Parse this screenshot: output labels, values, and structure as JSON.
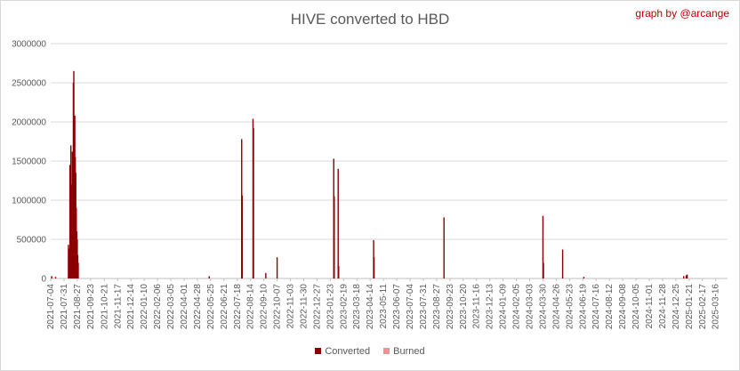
{
  "chart_data": {
    "type": "bar",
    "title": "HIVE converted to HBD",
    "credit": "graph by @arcange",
    "xlabel": "",
    "ylabel": "",
    "ylim": [
      0,
      3000000
    ],
    "yticks": [
      "0",
      "500000",
      "1000000",
      "1500000",
      "2000000",
      "2500000",
      "3000000"
    ],
    "ytick_values": [
      0,
      500000,
      1000000,
      1500000,
      2000000,
      2500000,
      3000000
    ],
    "grid": true,
    "legend_position": "bottom",
    "x_start": "2021-07-04",
    "x_end": "2025-04-09",
    "x_ticks": [
      "2021-07-04",
      "2021-07-31",
      "2021-08-27",
      "2021-09-23",
      "2021-10-21",
      "2021-11-17",
      "2021-12-14",
      "2022-01-10",
      "2022-02-06",
      "2022-03-05",
      "2022-04-01",
      "2022-04-28",
      "2022-05-25",
      "2022-06-21",
      "2022-07-18",
      "2022-08-14",
      "2022-09-10",
      "2022-10-07",
      "2022-11-03",
      "2022-11-30",
      "2022-12-27",
      "2023-01-23",
      "2023-02-19",
      "2023-03-18",
      "2023-04-14",
      "2023-05-11",
      "2023-06-07",
      "2023-07-04",
      "2023-07-31",
      "2023-08-27",
      "2023-09-23",
      "2023-10-20",
      "2023-11-16",
      "2023-12-13",
      "2024-01-09",
      "2024-02-05",
      "2024-03-03",
      "2024-03-30",
      "2024-04-26",
      "2024-05-23",
      "2024-06-19",
      "2024-07-16",
      "2024-08-12",
      "2024-09-08",
      "2024-10-05",
      "2024-11-01",
      "2024-11-28",
      "2024-12-25",
      "2025-01-21",
      "2025-02-17",
      "2025-03-16"
    ],
    "series": [
      {
        "name": "Converted",
        "color": "#8b0000",
        "points": [
          [
            "2021-07-06",
            30000
          ],
          [
            "2021-07-14",
            20000
          ],
          [
            "2021-08-09",
            430000
          ],
          [
            "2021-08-10",
            380000
          ],
          [
            "2021-08-11",
            260000
          ],
          [
            "2021-08-12",
            1450000
          ],
          [
            "2021-08-13",
            1120000
          ],
          [
            "2021-08-14",
            1700000
          ],
          [
            "2021-08-15",
            1200000
          ],
          [
            "2021-08-16",
            900000
          ],
          [
            "2021-08-17",
            1620000
          ],
          [
            "2021-08-18",
            1150000
          ],
          [
            "2021-08-19",
            2500000
          ],
          [
            "2021-08-20",
            2650000
          ],
          [
            "2021-08-21",
            1900000
          ],
          [
            "2021-08-22",
            2080000
          ],
          [
            "2021-08-23",
            1550000
          ],
          [
            "2021-08-24",
            1350000
          ],
          [
            "2021-08-25",
            900000
          ],
          [
            "2021-08-26",
            600000
          ],
          [
            "2021-08-27",
            500000
          ],
          [
            "2021-08-28",
            300000
          ],
          [
            "2021-08-29",
            200000
          ],
          [
            "2022-05-22",
            30000
          ],
          [
            "2022-07-27",
            1780000
          ],
          [
            "2022-07-28",
            1060000
          ],
          [
            "2022-08-19",
            2040000
          ],
          [
            "2022-08-20",
            1920000
          ],
          [
            "2022-09-14",
            70000
          ],
          [
            "2022-10-07",
            270000
          ],
          [
            "2023-01-30",
            1530000
          ],
          [
            "2023-01-31",
            1050000
          ],
          [
            "2023-02-08",
            1400000
          ],
          [
            "2023-02-09",
            160000
          ],
          [
            "2023-04-21",
            490000
          ],
          [
            "2023-04-22",
            270000
          ],
          [
            "2023-09-11",
            780000
          ],
          [
            "2024-03-30",
            800000
          ],
          [
            "2024-03-31",
            200000
          ],
          [
            "2024-05-09",
            370000
          ],
          [
            "2024-06-21",
            20000
          ],
          [
            "2025-01-10",
            30000
          ],
          [
            "2025-01-15",
            40000
          ],
          [
            "2025-01-17",
            50000
          ]
        ]
      },
      {
        "name": "Burned",
        "color": "#e89494",
        "points": []
      }
    ]
  }
}
